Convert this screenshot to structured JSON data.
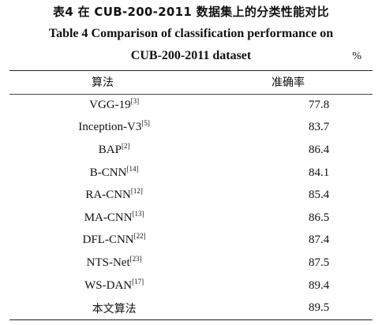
{
  "caption": {
    "zh": "表4   在 CUB-200-2011 数据集上的分类性能对比",
    "en_line1": "Table 4   Comparison of classification performance on",
    "en_line2": "CUB-200-2011 dataset",
    "unit": "%"
  },
  "table": {
    "headers": {
      "algorithm": "算法",
      "accuracy": "准确率"
    },
    "rows": [
      {
        "name": "VGG-19",
        "ref": "[3]",
        "accuracy": "77.8"
      },
      {
        "name": "Inception-V3",
        "ref": "[5]",
        "accuracy": "83.7"
      },
      {
        "name": "BAP",
        "ref": "[2]",
        "accuracy": "86.4"
      },
      {
        "name": "B-CNN",
        "ref": "[14]",
        "accuracy": "84.1"
      },
      {
        "name": "RA-CNN",
        "ref": "[12]",
        "accuracy": "85.4"
      },
      {
        "name": "MA-CNN",
        "ref": "[13]",
        "accuracy": "86.5"
      },
      {
        "name": "DFL-CNN",
        "ref": "[22]",
        "accuracy": "87.4"
      },
      {
        "name": "NTS-Net",
        "ref": "[23]",
        "accuracy": "87.5"
      },
      {
        "name": "WS-DAN",
        "ref": "[17]",
        "accuracy": "89.4"
      },
      {
        "name": "本文算法",
        "ref": "",
        "accuracy": "89.5"
      }
    ]
  }
}
